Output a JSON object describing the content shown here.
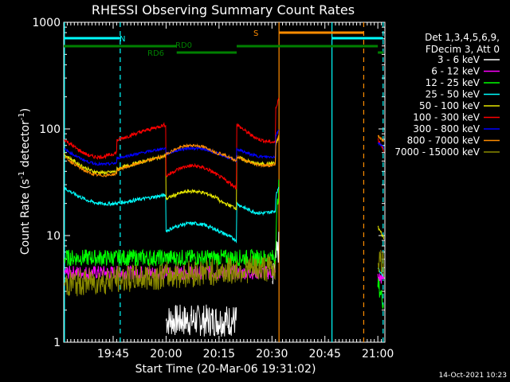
{
  "chart_data": {
    "type": "line",
    "title": "RHESSI Observing Summary Count Rates",
    "xlabel": "Start Time (20-Mar-06 19:31:02)",
    "ylabel_main": "Count Rate (s",
    "ylabel_sup1": "-1",
    "ylabel_mid": " detector",
    "ylabel_sup2": "-1",
    "ylabel_end": ")",
    "y_scale": "log",
    "ylim": [
      1,
      1000
    ],
    "xlim_minutes": [
      0,
      91
    ],
    "x_ticks": [
      {
        "label": "19:45",
        "t": 14
      },
      {
        "label": "20:00",
        "t": 29
      },
      {
        "label": "20:15",
        "t": 44
      },
      {
        "label": "20:30",
        "t": 59
      },
      {
        "label": "20:45",
        "t": 74
      },
      {
        "label": "21:00",
        "t": 89
      }
    ],
    "y_ticks": [
      {
        "label": "1",
        "v": 1
      },
      {
        "label": "10",
        "v": 10
      },
      {
        "label": "100",
        "v": 100
      },
      {
        "label": "1000",
        "v": 1000
      }
    ],
    "legend_header": [
      "Det 1,3,4,5,6,9,",
      "FDecim 3, Att 0"
    ],
    "series": [
      {
        "name": "3 - 6 keV",
        "color": "#ffffff"
      },
      {
        "name": "6 - 12 keV",
        "color": "#ff00ff"
      },
      {
        "name": "12 - 25 keV",
        "color": "#00ff00"
      },
      {
        "name": "25 - 50 keV",
        "color": "#00ffff"
      },
      {
        "name": "50 - 100 keV",
        "color": "#e6e600"
      },
      {
        "name": "100 - 300 keV",
        "color": "#ff0000"
      },
      {
        "name": "300 - 800 keV",
        "color": "#0000ff"
      },
      {
        "name": "800 - 7000 keV",
        "color": "#ff8c00"
      },
      {
        "name": "7000 - 15000 keV",
        "color": "#8b8b00"
      }
    ],
    "flags": [
      {
        "label": "N",
        "color": "#00ffff",
        "segments": [
          [
            0,
            16
          ],
          [
            76,
            90.5
          ]
        ]
      },
      {
        "label": "S",
        "color": "#ff8c00",
        "segments": [
          [
            61,
            85
          ]
        ]
      },
      {
        "label": "RD0",
        "color": "#008000",
        "segments": [
          [
            0,
            32
          ],
          [
            49,
            89
          ]
        ]
      },
      {
        "label": "RD6",
        "color": "#008000",
        "segments": [
          [
            32,
            49
          ],
          [
            89,
            91
          ]
        ]
      }
    ],
    "vertical_lines": [
      {
        "t": 0.2,
        "color": "#00ffff",
        "style": "solid"
      },
      {
        "t": 16,
        "color": "#00ffff",
        "style": "dashed"
      },
      {
        "t": 61,
        "color": "#ff8c00",
        "style": "solid"
      },
      {
        "t": 76,
        "color": "#00ffff",
        "style": "solid"
      },
      {
        "t": 85,
        "color": "#ff8c00",
        "style": "dashed"
      },
      {
        "t": 90.5,
        "color": "#00ffff",
        "style": "dashed"
      }
    ],
    "grid": false,
    "legend_position": "right"
  },
  "timestamp": "14-Oct-2021 10:23"
}
